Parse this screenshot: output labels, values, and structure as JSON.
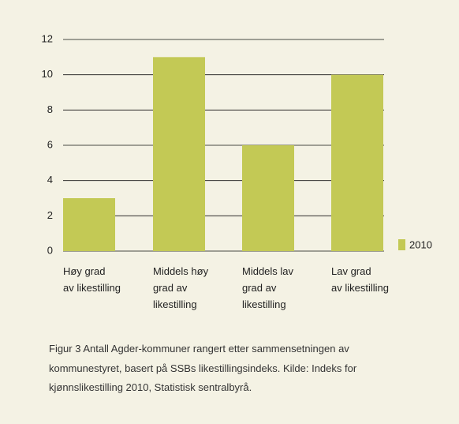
{
  "chart_data": {
    "type": "bar",
    "categories": [
      "Høy grad av likestilling",
      "Middels høy grad av likestilling",
      "Middels lav grad av likestilling",
      "Lav grad av likestilling"
    ],
    "series": [
      {
        "name": "2010",
        "color": "#c3c955",
        "values": [
          3,
          11,
          6,
          10
        ]
      }
    ],
    "ylim": [
      0,
      12
    ],
    "yticks": [
      0,
      2,
      4,
      6,
      8,
      10,
      12
    ],
    "grid": true,
    "legend": "right",
    "caption": "Figur 3 Antall Agder-kommuner rangert etter sammensetningen av kommunestyret, basert på SSBs likestillingsindeks. Kilde: Indeks for kjønnslikestilling 2010, Statistisk sentralbyrå."
  }
}
